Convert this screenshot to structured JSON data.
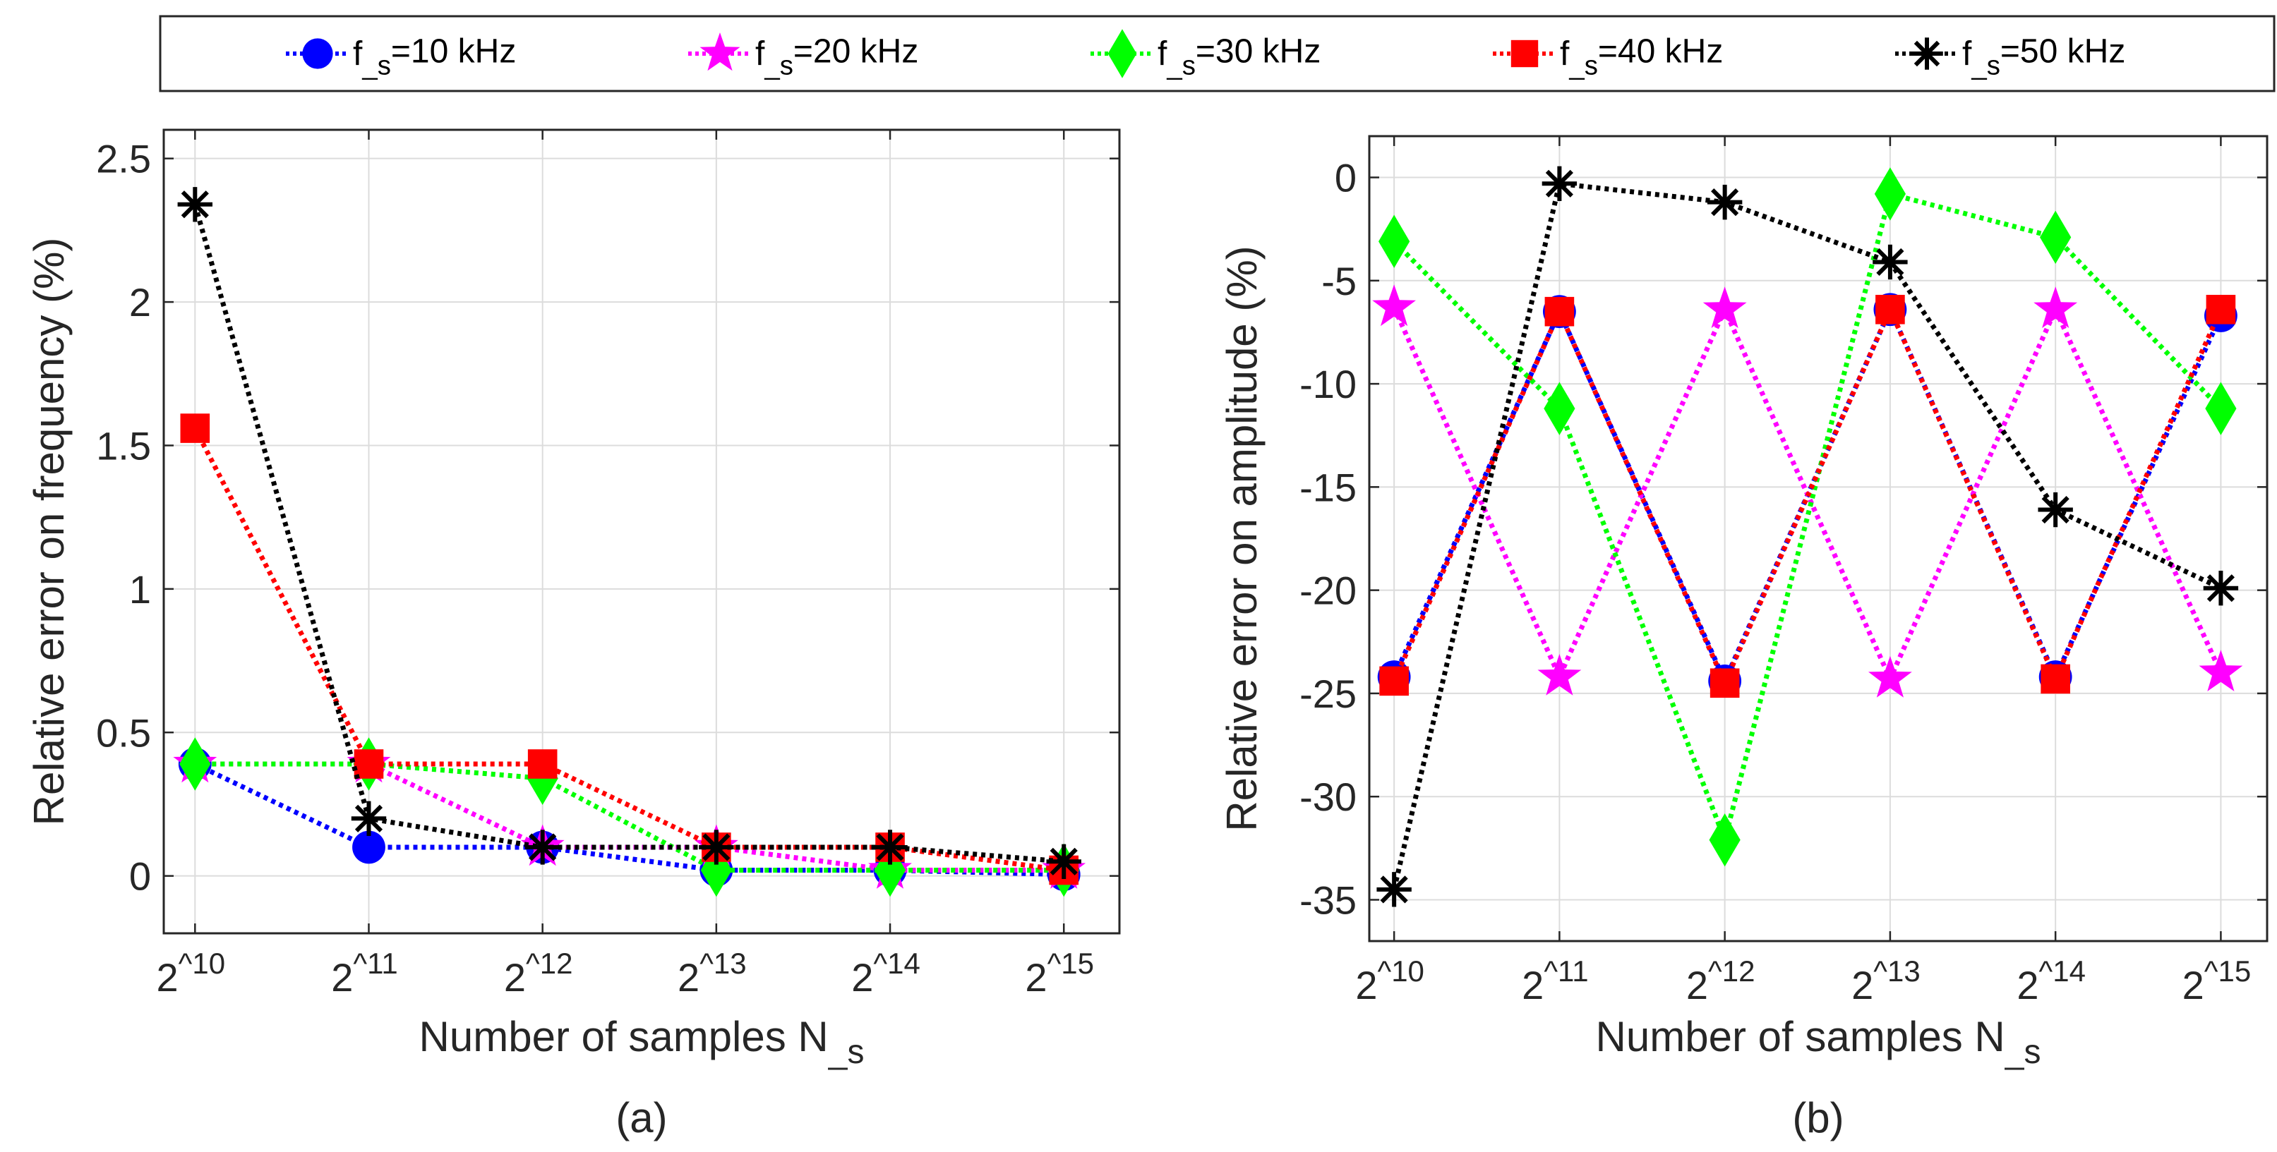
{
  "legend": [
    {
      "label": "f_s=10 kHz",
      "color": "#0000ff",
      "marker": "circle"
    },
    {
      "label": "f_s=20 kHz",
      "color": "#ff00ff",
      "marker": "pentagram"
    },
    {
      "label": "f_s=30 kHz",
      "color": "#00ff00",
      "marker": "diamond"
    },
    {
      "label": "f_s=40 kHz",
      "color": "#ff0000",
      "marker": "square"
    },
    {
      "label": "f_s=50 kHz",
      "color": "#000000",
      "marker": "asterisk"
    }
  ],
  "chart_data": [
    {
      "type": "line",
      "caption": "(a)",
      "xlabel": "Number of samples N_s",
      "ylabel": "Relative error on frequency (%)",
      "x": [
        10,
        11,
        12,
        13,
        14,
        15
      ],
      "xticklabels": [
        "2^10",
        "2^11",
        "2^12",
        "2^13",
        "2^14",
        "2^15"
      ],
      "xlim": [
        9.82,
        15.32
      ],
      "ylim": [
        -0.2,
        2.6
      ],
      "yticks": [
        0,
        0.5,
        1,
        1.5,
        2,
        2.5
      ],
      "yticklabels": [
        "0",
        "0.5",
        "1",
        "1.5",
        "2",
        "2.5"
      ],
      "grid": true,
      "series": [
        {
          "name": "f_s=10 kHz",
          "values": [
            0.39,
            0.1,
            0.1,
            0.02,
            0.02,
            0.005
          ]
        },
        {
          "name": "f_s=20 kHz",
          "values": [
            0.39,
            0.39,
            0.1,
            0.1,
            0.02,
            0.02
          ]
        },
        {
          "name": "f_s=30 kHz",
          "values": [
            0.39,
            0.39,
            0.34,
            0.02,
            0.02,
            0.02
          ]
        },
        {
          "name": "f_s=40 kHz",
          "values": [
            1.56,
            0.39,
            0.39,
            0.1,
            0.1,
            0.02
          ]
        },
        {
          "name": "f_s=50 kHz",
          "values": [
            2.34,
            0.2,
            0.1,
            0.1,
            0.1,
            0.05
          ]
        }
      ]
    },
    {
      "type": "line",
      "caption": "(b)",
      "xlabel": "Number of samples N_s",
      "ylabel": "Relative error on amplitude (%)",
      "x": [
        10,
        11,
        12,
        13,
        14,
        15
      ],
      "xticklabels": [
        "2^10",
        "2^11",
        "2^12",
        "2^13",
        "2^14",
        "2^15"
      ],
      "xlim": [
        9.85,
        15.28
      ],
      "ylim": [
        -37,
        2
      ],
      "yticks": [
        0,
        -5,
        -10,
        -15,
        -20,
        -25,
        -30,
        -35
      ],
      "yticklabels": [
        "0",
        "-5",
        "-10",
        "-15",
        "-20",
        "-25",
        "-30",
        "-35"
      ],
      "grid": true,
      "series": [
        {
          "name": "f_s=10 kHz",
          "values": [
            -24.2,
            -6.5,
            -24.4,
            -6.4,
            -24.2,
            -6.7
          ]
        },
        {
          "name": "f_s=20 kHz",
          "values": [
            -6.3,
            -24.2,
            -6.4,
            -24.3,
            -6.4,
            -24.0
          ]
        },
        {
          "name": "f_s=30 kHz",
          "values": [
            -3.1,
            -11.2,
            -32.1,
            -0.8,
            -2.9,
            -11.2
          ]
        },
        {
          "name": "f_s=40 kHz",
          "values": [
            -24.4,
            -6.5,
            -24.5,
            -6.4,
            -24.3,
            -6.4
          ]
        },
        {
          "name": "f_s=50 kHz",
          "values": [
            -34.5,
            -0.3,
            -1.2,
            -4.1,
            -16.1,
            -19.9
          ]
        }
      ]
    }
  ]
}
